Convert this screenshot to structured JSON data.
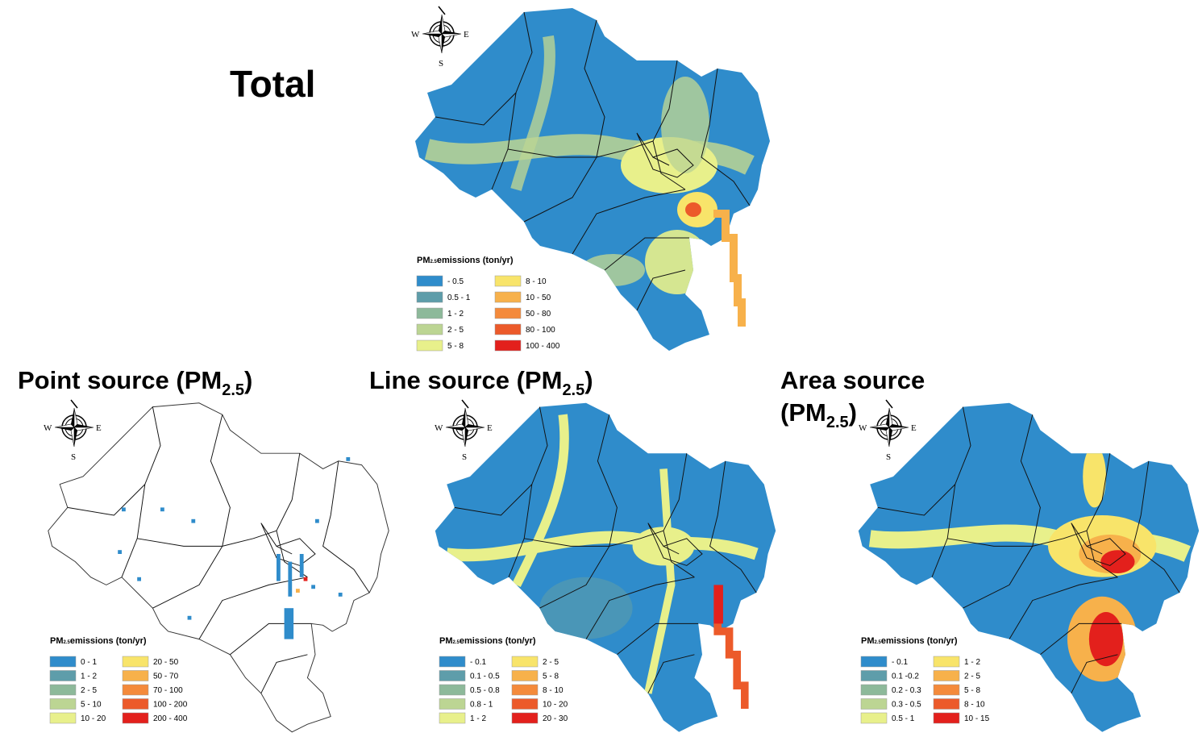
{
  "compass": {
    "west": "W",
    "east": "E",
    "south": "S"
  },
  "panels": [
    {
      "title": "Total",
      "legend": {
        "title_prefix": "PM",
        "title_sub": "2.5",
        "title_suffix": "emissions (ton/yr)",
        "items": [
          {
            "label": "- 0.5",
            "color": "#2f8ccb"
          },
          {
            "label": "0.5 - 1",
            "color": "#5e9daa"
          },
          {
            "label": "1 - 2",
            "color": "#8db99a"
          },
          {
            "label": "2 - 5",
            "color": "#bcd593"
          },
          {
            "label": "5 - 8",
            "color": "#e8f08b"
          },
          {
            "label": "8 - 10",
            "color": "#f8e46a"
          },
          {
            "label": "10 - 50",
            "color": "#f7b14b"
          },
          {
            "label": "50 - 80",
            "color": "#f48a3b"
          },
          {
            "label": "80 - 100",
            "color": "#ec5a2a"
          },
          {
            "label": "100 - 400",
            "color": "#e3201c"
          }
        ]
      }
    },
    {
      "title": "Point source (PM",
      "title_sub": "2.5",
      "title_end": ")",
      "legend": {
        "title_prefix": "PM",
        "title_sub": "2.5",
        "title_suffix": "emissions (ton/yr)",
        "items": [
          {
            "label": "0 - 1",
            "color": "#2f8ccb"
          },
          {
            "label": "1 - 2",
            "color": "#5e9daa"
          },
          {
            "label": "2 - 5",
            "color": "#8db99a"
          },
          {
            "label": "5 - 10",
            "color": "#bcd593"
          },
          {
            "label": "10 - 20",
            "color": "#e8f08b"
          },
          {
            "label": "20 - 50",
            "color": "#f8e46a"
          },
          {
            "label": "50 - 70",
            "color": "#f7b14b"
          },
          {
            "label": "70 - 100",
            "color": "#f48a3b"
          },
          {
            "label": "100 - 200",
            "color": "#ec5a2a"
          },
          {
            "label": "200 - 400",
            "color": "#e3201c"
          }
        ]
      }
    },
    {
      "title": "Line source (PM",
      "title_sub": "2.5",
      "title_end": ")",
      "legend": {
        "title_prefix": "PM",
        "title_sub": "2.5",
        "title_suffix": "emissions (ton/yr)",
        "items": [
          {
            "label": "- 0.1",
            "color": "#2f8ccb"
          },
          {
            "label": "0.1 - 0.5",
            "color": "#5e9daa"
          },
          {
            "label": "0.5 - 0.8",
            "color": "#8db99a"
          },
          {
            "label": "0.8 - 1",
            "color": "#bcd593"
          },
          {
            "label": "1 - 2",
            "color": "#e8f08b"
          },
          {
            "label": "2 - 5",
            "color": "#f8e46a"
          },
          {
            "label": "5 - 8",
            "color": "#f7b14b"
          },
          {
            "label": "8 - 10",
            "color": "#f48a3b"
          },
          {
            "label": "10 - 20",
            "color": "#ec5a2a"
          },
          {
            "label": "20 - 30",
            "color": "#e3201c"
          }
        ]
      }
    },
    {
      "title": "Area source",
      "title_line2": "(PM",
      "title_sub": "2.5",
      "title_end": ")",
      "legend": {
        "title_prefix": "PM",
        "title_sub": "2.5",
        "title_suffix": "emissions (ton/yr)",
        "items": [
          {
            "label": "- 0.1",
            "color": "#2f8ccb"
          },
          {
            "label": "0.1 -0.2",
            "color": "#5e9daa"
          },
          {
            "label": "0.2 - 0.3",
            "color": "#8db99a"
          },
          {
            "label": "0.3 - 0.5",
            "color": "#bcd593"
          },
          {
            "label": "0.5 - 1",
            "color": "#e8f08b"
          },
          {
            "label": "1 - 2",
            "color": "#f8e46a"
          },
          {
            "label": "2 - 5",
            "color": "#f7b14b"
          },
          {
            "label": "5 - 8",
            "color": "#f48a3b"
          },
          {
            "label": "8 - 10",
            "color": "#ec5a2a"
          },
          {
            "label": "10 - 15",
            "color": "#e3201c"
          }
        ]
      }
    }
  ]
}
